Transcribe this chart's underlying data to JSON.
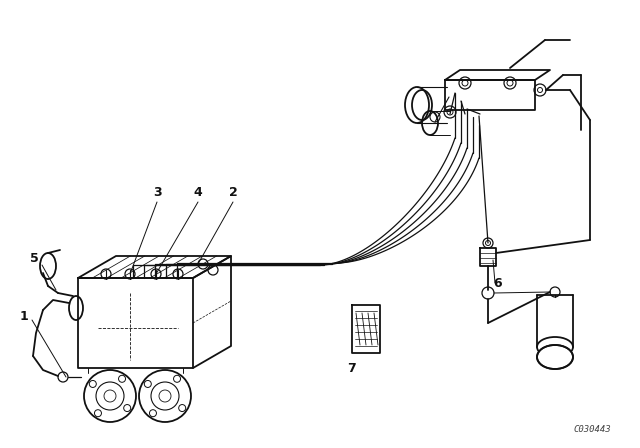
{
  "bg_color": "#ffffff",
  "line_color": "#111111",
  "catalog_code": "C030443",
  "lw_main": 1.3,
  "lw_thin": 0.8,
  "lw_thick": 1.6
}
